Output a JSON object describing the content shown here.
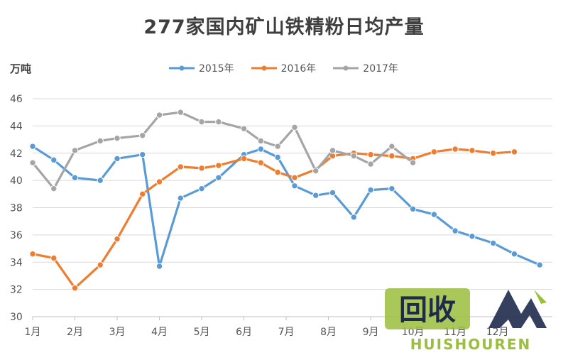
{
  "chart_data": {
    "type": "line",
    "title": "277家国内矿山铁精粉日均产量",
    "ylabel": "万吨",
    "ylim": [
      30,
      46
    ],
    "yticks": [
      30,
      32,
      34,
      36,
      38,
      40,
      42,
      44,
      46
    ],
    "month_labels": [
      "1月",
      "2月",
      "3月",
      "4月",
      "5月",
      "6月",
      "7月",
      "8月",
      "9月",
      "10月",
      "11月",
      "12月"
    ],
    "grid": true,
    "legend_position": "top",
    "series": [
      {
        "name": "2015年",
        "color": "#5B9BD5",
        "x": [
          1,
          1.5,
          2,
          2.6,
          3,
          3.6,
          4,
          4.5,
          5,
          5.4,
          6,
          6.4,
          6.8,
          7.2,
          7.7,
          8.1,
          8.6,
          9,
          9.5,
          10,
          10.5,
          11,
          11.4,
          11.9,
          12.4,
          13
        ],
        "values": [
          42.5,
          41.5,
          40.2,
          40.0,
          41.6,
          41.9,
          33.7,
          38.7,
          39.4,
          40.2,
          41.9,
          42.3,
          41.7,
          39.6,
          38.9,
          39.1,
          37.3,
          39.3,
          39.4,
          37.9,
          37.5,
          36.3,
          35.9,
          35.4,
          34.6,
          33.8
        ]
      },
      {
        "name": "2016年",
        "color": "#ED7D31",
        "x": [
          1,
          1.5,
          2,
          2.6,
          3,
          3.6,
          4,
          4.5,
          5,
          5.4,
          6,
          6.4,
          6.8,
          7.2,
          7.7,
          8.1,
          8.6,
          9,
          9.5,
          10,
          10.5,
          11,
          11.4,
          11.9,
          12.4
        ],
        "values": [
          34.6,
          34.3,
          32.1,
          33.8,
          35.7,
          39.0,
          39.9,
          41.0,
          40.9,
          41.1,
          41.6,
          41.3,
          40.6,
          40.2,
          40.8,
          41.8,
          42.0,
          41.9,
          41.8,
          41.6,
          42.1,
          42.3,
          42.2,
          42.0,
          42.1
        ]
      },
      {
        "name": "2017年",
        "color": "#A5A5A5",
        "x": [
          1,
          1.5,
          2,
          2.6,
          3,
          3.6,
          4,
          4.5,
          5,
          5.4,
          6,
          6.4,
          6.8,
          7.2,
          7.7,
          8.1,
          8.6,
          9,
          9.5,
          10
        ],
        "values": [
          41.3,
          39.4,
          42.2,
          42.9,
          43.1,
          43.3,
          44.8,
          45.0,
          44.3,
          44.3,
          43.8,
          42.9,
          42.5,
          43.9,
          40.7,
          42.2,
          41.8,
          41.2,
          42.5,
          41.3
        ]
      }
    ]
  },
  "watermark": {
    "logo_text": "回收",
    "brand": "HUISHOUREN",
    "colors": {
      "green": "#9BBE3C",
      "dark": "#1E2B4D"
    }
  }
}
